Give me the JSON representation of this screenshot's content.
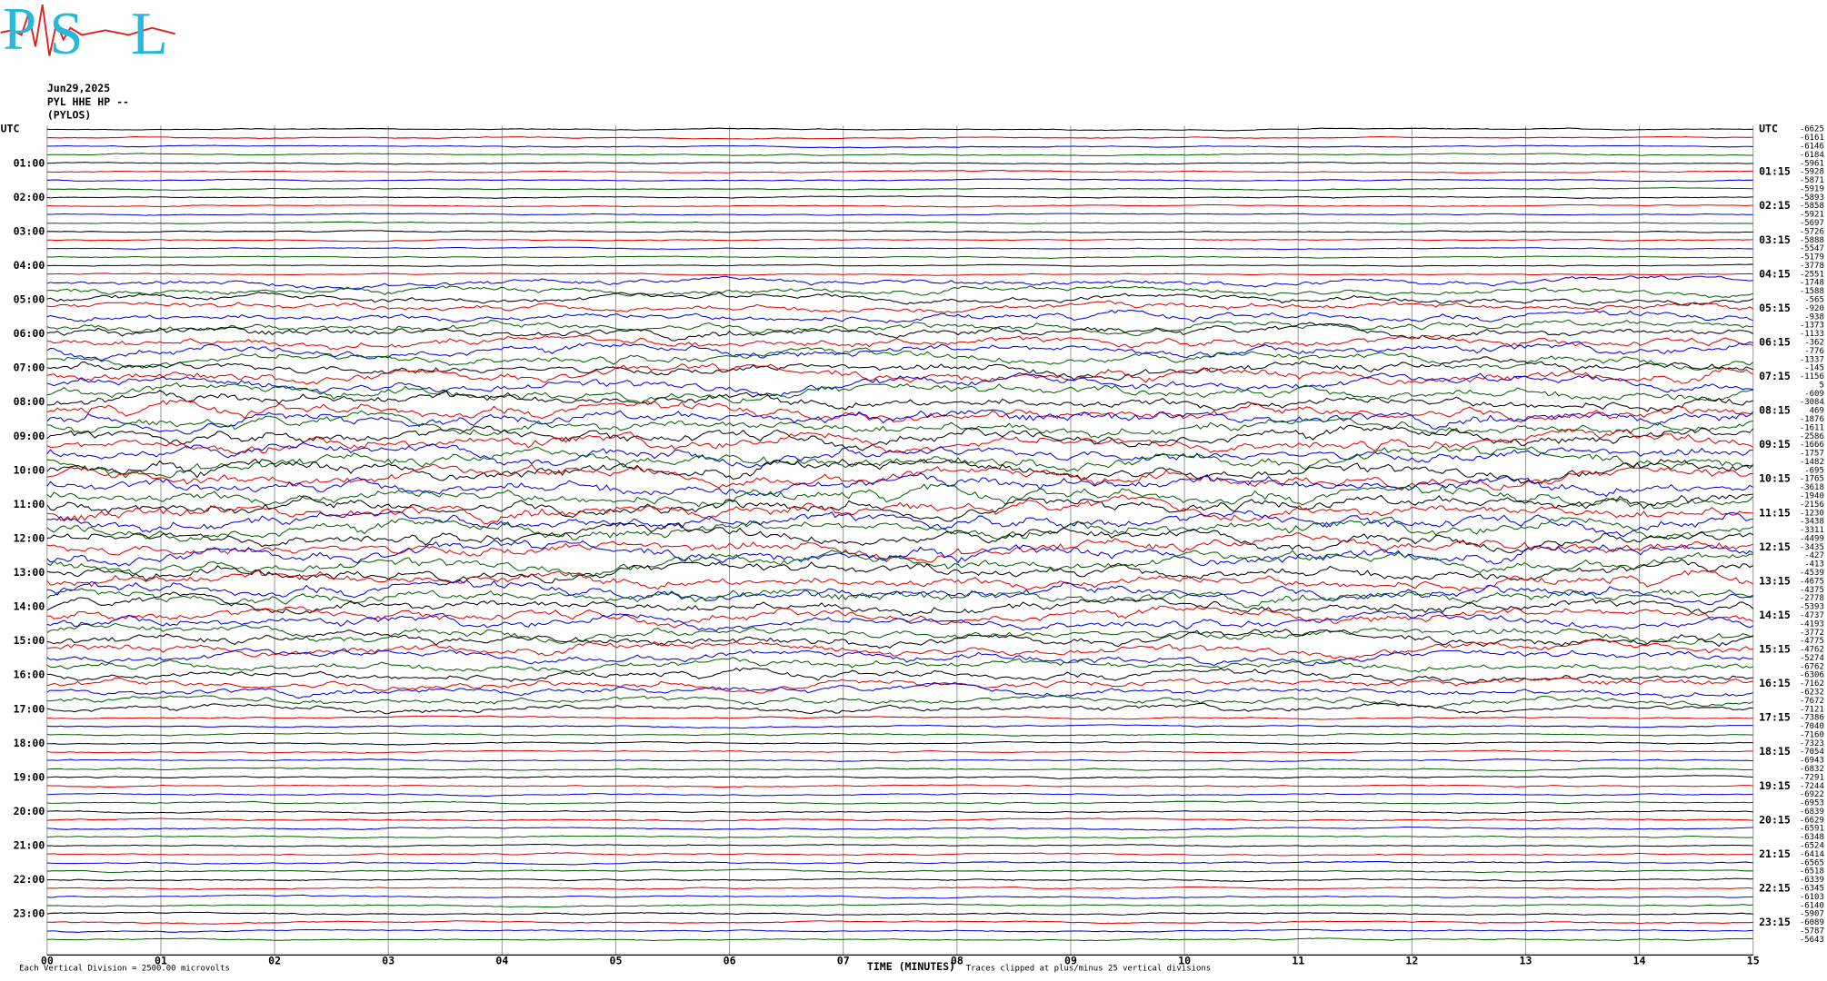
{
  "logo": {
    "letters": [
      "P",
      "S",
      "L"
    ]
  },
  "header": {
    "date": "Jun29,2025",
    "channel": "PYL HHE HP --",
    "station": "(PYLOS)"
  },
  "left_labels": [
    "UTC",
    "01:00",
    "02:00",
    "03:00",
    "04:00",
    "05:00",
    "06:00",
    "07:00",
    "08:00",
    "09:00",
    "10:00",
    "11:00",
    "12:00",
    "13:00",
    "14:00",
    "15:00",
    "16:00",
    "17:00",
    "18:00",
    "19:00",
    "20:00",
    "21:00",
    "22:00",
    "23:00"
  ],
  "right_labels": [
    "UTC",
    "01:15",
    "02:15",
    "03:15",
    "04:15",
    "05:15",
    "06:15",
    "07:15",
    "08:15",
    "09:15",
    "10:15",
    "11:15",
    "12:15",
    "13:15",
    "14:15",
    "15:15",
    "16:15",
    "17:15",
    "18:15",
    "19:15",
    "20:15",
    "21:15",
    "22:15",
    "23:15"
  ],
  "trace_offsets": [
    -6625,
    -6161,
    -6146,
    -6184,
    -5961,
    -5928,
    -5871,
    -5919,
    -5893,
    -5858,
    -5921,
    -5697,
    -5726,
    -5888,
    -5547,
    -5179,
    -3778,
    -2551,
    -1748,
    -1588,
    -565,
    -920,
    -938,
    -1373,
    -1133,
    -362,
    -776,
    -1337,
    -145,
    -1156,
    5,
    -609,
    -3084,
    469,
    -1876,
    -1611,
    -2586,
    -1666,
    -1757,
    -1482,
    -695,
    -1765,
    -3618,
    -1940,
    -2156,
    -1230,
    -3438,
    -3311,
    -4499,
    -3435,
    -427,
    -413,
    -4539,
    -4675,
    -4375,
    -2778,
    -5393,
    -4737,
    -4193,
    -3772,
    -4775,
    -4762,
    -5274,
    -6762,
    -6306,
    -7162,
    -6232,
    -7672,
    -7121,
    -7386,
    -7040,
    -7160,
    -7323,
    -7054,
    -6943,
    -6832,
    -7291,
    -7244,
    -6922,
    -6953,
    -6839,
    -6629,
    -6591,
    -6348,
    -6524,
    -6414,
    -6565,
    -6518,
    -6339,
    -6345,
    -6103,
    -6140,
    -5907,
    -6089,
    -5787,
    -5643
  ],
  "x_labels": [
    "00",
    "01",
    "02",
    "03",
    "04",
    "05",
    "06",
    "07",
    "08",
    "09",
    "10",
    "11",
    "12",
    "13",
    "14",
    "15"
  ],
  "footer": {
    "scale": "Each Vertical Division = 2500.00 microvolts",
    "x_title": "TIME (MINUTES)",
    "clip": "Traces clipped at plus/minus 25 vertical divisions"
  },
  "colors": [
    "#000000",
    "#e00000",
    "#0000e0",
    "#006000"
  ]
}
